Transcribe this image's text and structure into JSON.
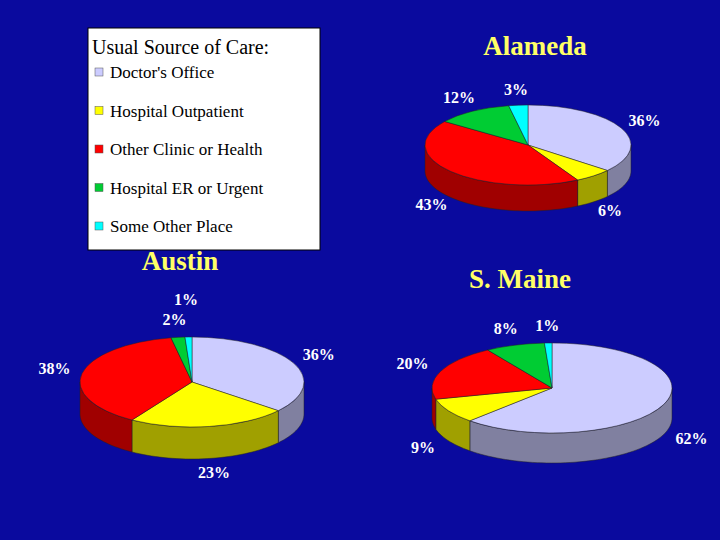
{
  "chart_data": {
    "type": "pie",
    "legend_title": "Usual Source of Care:",
    "categories": [
      "Doctor's Office",
      "Hospital Outpatient",
      "Other Clinic or Health",
      "Hospital ER or Urgent",
      "Some Other Place"
    ],
    "colors": [
      "#ccccff",
      "#ffff00",
      "#ff0000",
      "#00cc33",
      "#00ffff"
    ],
    "data_labels": true,
    "series": [
      {
        "name": "Alameda",
        "values": [
          36,
          6,
          43,
          12,
          3
        ],
        "value_labels": [
          "36%",
          "6%",
          "43%",
          "12%",
          "3%"
        ]
      },
      {
        "name": "Austin",
        "values": [
          36,
          23,
          38,
          2,
          1
        ],
        "value_labels": [
          "36%",
          "23%",
          "38%",
          "2%",
          "1%"
        ]
      },
      {
        "name": "S. Maine",
        "values": [
          62,
          9,
          20,
          8,
          1
        ],
        "value_labels": [
          "62%",
          "9%",
          "20%",
          "8%",
          "1%"
        ]
      }
    ]
  }
}
